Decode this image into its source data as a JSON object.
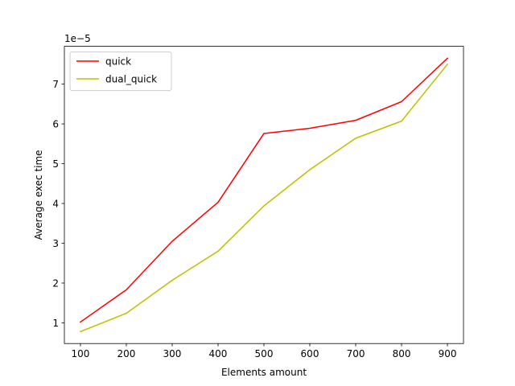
{
  "chart_data": {
    "type": "line",
    "title": "",
    "xlabel": "Elements amount",
    "ylabel": "Average exec time",
    "y_offset_label": "1e−5",
    "y_scale_factor": 1e-05,
    "x": [
      100,
      200,
      300,
      400,
      500,
      600,
      700,
      800,
      900
    ],
    "xlim": [
      65,
      935
    ],
    "ylim": [
      4.8e-06,
      7.95e-05
    ],
    "x_ticks": [
      100,
      200,
      300,
      400,
      500,
      600,
      700,
      800,
      900
    ],
    "x_tick_labels": [
      "100",
      "200",
      "300",
      "400",
      "500",
      "600",
      "700",
      "800",
      "900"
    ],
    "y_ticks": [
      1e-05,
      2e-05,
      3e-05,
      4e-05,
      5e-05,
      6e-05,
      7e-05
    ],
    "y_tick_labels": [
      "1",
      "2",
      "3",
      "4",
      "5",
      "6",
      "7"
    ],
    "grid": false,
    "legend_position": "upper left",
    "series": [
      {
        "name": "quick",
        "color": "#ff0000",
        "values": [
          1.02e-05,
          1.83e-05,
          3.05e-05,
          4.03e-05,
          5.76e-05,
          5.89e-05,
          6.09e-05,
          6.56e-05,
          7.65e-05
        ]
      },
      {
        "name": "dual_quick",
        "color": "#bfbf00",
        "values": [
          7.8e-06,
          1.24e-05,
          2.07e-05,
          2.8e-05,
          3.94e-05,
          4.85e-05,
          5.64e-05,
          6.07e-05,
          7.5e-05
        ]
      }
    ]
  }
}
